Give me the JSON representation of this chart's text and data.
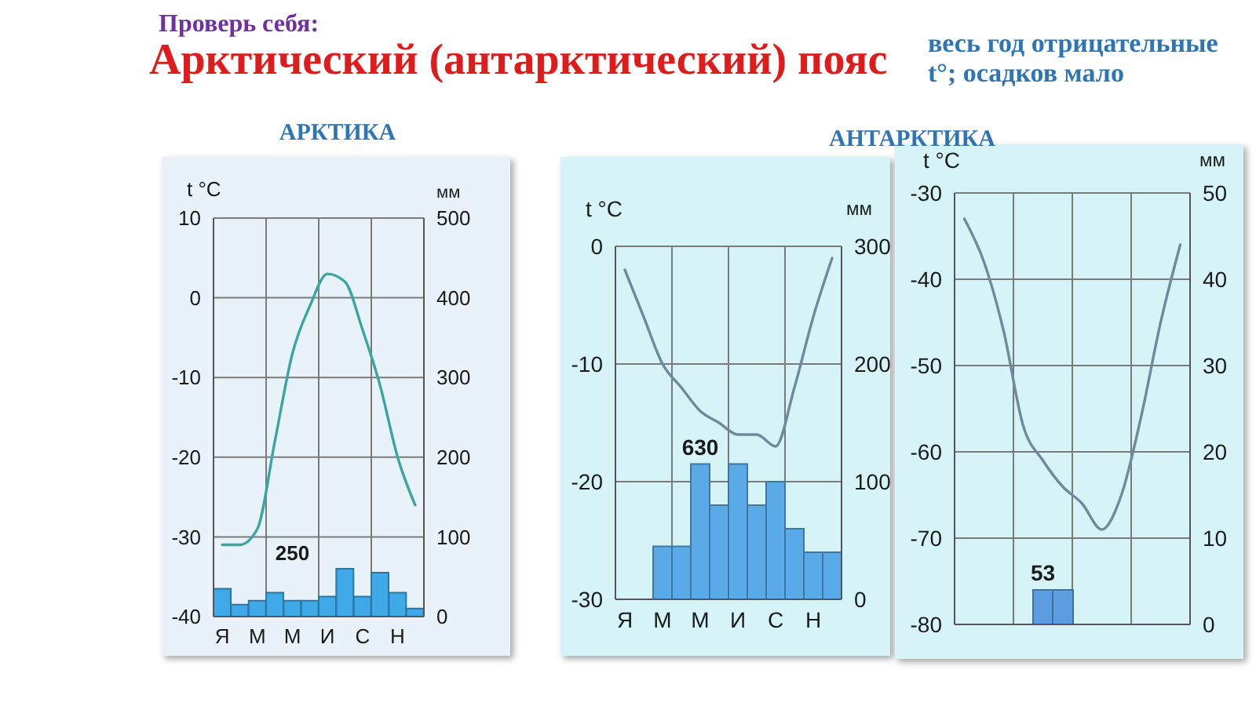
{
  "chart_data": [
    {
      "type": "other",
      "title": "Арктический (антарктический) пояс",
      "subtitle": "Проверь себя:",
      "annotations": [
        "весь год отрицательные t°; осадков мало"
      ]
    },
    {
      "type": "bar",
      "title": "АРКТИКА",
      "categories": [
        "Я",
        null,
        "М",
        null,
        "М",
        null,
        "И",
        null,
        "С",
        null,
        "Н",
        null
      ],
      "ylabel": "t °C",
      "y2label": "мм",
      "series": [
        {
          "type": "bar",
          "axis": "y2",
          "color": "#3fa9e8",
          "values": [
            35,
            15,
            20,
            30,
            20,
            20,
            25,
            60,
            25,
            55,
            30,
            10
          ]
        },
        {
          "type": "line",
          "color": "#3aa6a4",
          "values": [
            -31,
            -31,
            -29,
            -18,
            -7,
            -1,
            3,
            2,
            -4,
            -11,
            -20,
            -26
          ]
        }
      ],
      "ylim": [
        -40,
        10
      ],
      "yticks": [
        -40,
        -30,
        -20,
        -10,
        0,
        10
      ],
      "y2lim": [
        0,
        500
      ],
      "y2ticks": [
        0,
        100,
        200,
        300,
        400,
        500
      ],
      "grid": true,
      "marker": "none",
      "annotations": [
        "250"
      ]
    },
    {
      "type": "bar",
      "title": "АНТАРКТИКА",
      "categories": [
        "Я",
        null,
        "М",
        null,
        "М",
        null,
        "И",
        null,
        "С",
        null,
        "Н",
        null
      ],
      "ylabel": "t °C",
      "y2label": "мм",
      "series": [
        {
          "type": "bar",
          "axis": "y2",
          "color": "#5aaae8",
          "values": [
            0,
            0,
            45,
            45,
            115,
            80,
            115,
            80,
            100,
            60,
            40,
            40
          ]
        },
        {
          "type": "line",
          "color": "#6f8a9c",
          "values": [
            -2,
            -6,
            -10,
            -12,
            -14,
            -15,
            -16,
            -16,
            -17,
            -12,
            -6,
            -1
          ]
        }
      ],
      "ylim": [
        -30,
        0
      ],
      "yticks": [
        -30,
        -20,
        -10,
        0
      ],
      "y2lim": [
        0,
        300
      ],
      "y2ticks": [
        0,
        100,
        200,
        300
      ],
      "grid": true,
      "marker": "none",
      "annotations": [
        "630"
      ]
    },
    {
      "type": "bar",
      "categories": [
        null,
        null,
        null,
        null,
        null,
        null,
        null,
        null,
        null,
        null,
        null,
        null
      ],
      "ylabel": "t °C",
      "y2label": "мм",
      "series": [
        {
          "type": "bar",
          "axis": "y2",
          "color": "#5b9de0",
          "values": [
            0,
            0,
            0,
            0,
            4,
            4,
            0,
            0,
            0,
            0,
            0,
            0
          ]
        },
        {
          "type": "line",
          "color": "#6f8a9c",
          "values": [
            -33,
            -38,
            -46,
            -57,
            -61,
            -64,
            -66,
            -69,
            -65,
            -56,
            -45,
            -36
          ]
        }
      ],
      "ylim": [
        -80,
        -30
      ],
      "yticks": [
        -80,
        -70,
        -60,
        -50,
        -40,
        -30
      ],
      "y2lim": [
        0,
        50
      ],
      "y2ticks": [
        0,
        10,
        20,
        30,
        40,
        50
      ],
      "grid": true,
      "marker": "none",
      "annotations": [
        "53"
      ]
    }
  ]
}
